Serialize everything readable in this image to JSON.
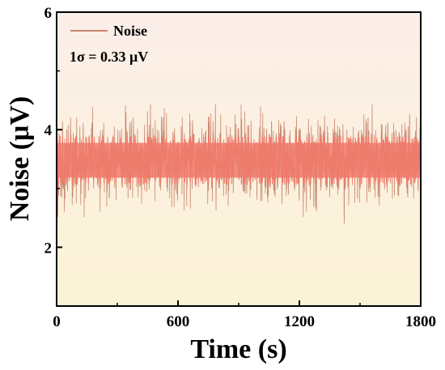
{
  "chart_data": {
    "type": "line",
    "title": "",
    "xlabel": "Time (s)",
    "ylabel": "Noise (μV)",
    "xlim": [
      0,
      1800
    ],
    "ylim": [
      1,
      6
    ],
    "x_ticks": [
      0,
      600,
      1200,
      1800
    ],
    "x_tick_labels": [
      "0",
      "600",
      "1200",
      "1800"
    ],
    "y_ticks": [
      2,
      4,
      6
    ],
    "y_tick_labels": [
      "2",
      "4",
      "6"
    ],
    "grid": false,
    "legend_position": "top-left",
    "series": [
      {
        "name": "Noise",
        "color": "#c98870",
        "band_color": "#f27a6a",
        "mean": 3.48,
        "sigma": 0.33,
        "n_points": 1800,
        "x_range": [
          0,
          1800
        ],
        "observed_min": 2.35,
        "observed_max": 4.43
      }
    ],
    "annotations": [
      {
        "text": "1σ = 0.33 μV",
        "position": "top-left"
      }
    ],
    "background_gradient": [
      "#fbeee9",
      "#fbf3d6"
    ]
  }
}
